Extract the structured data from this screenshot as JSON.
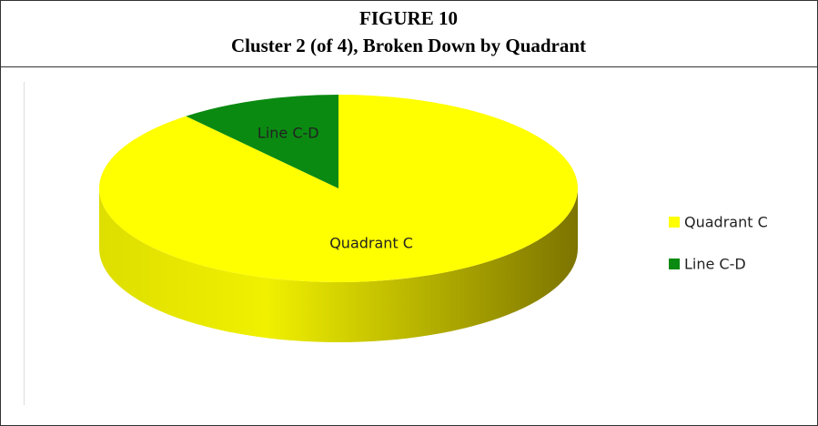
{
  "chart_data": {
    "type": "pie",
    "title": "FIGURE 10",
    "subtitle": "Cluster 2 (of 4), Broken Down by Quadrant",
    "categories": [
      "Quadrant C",
      "Line C-D"
    ],
    "values": [
      89,
      11
    ],
    "colors": [
      "#ffff00",
      "#0b8a12"
    ],
    "legend": "right"
  }
}
